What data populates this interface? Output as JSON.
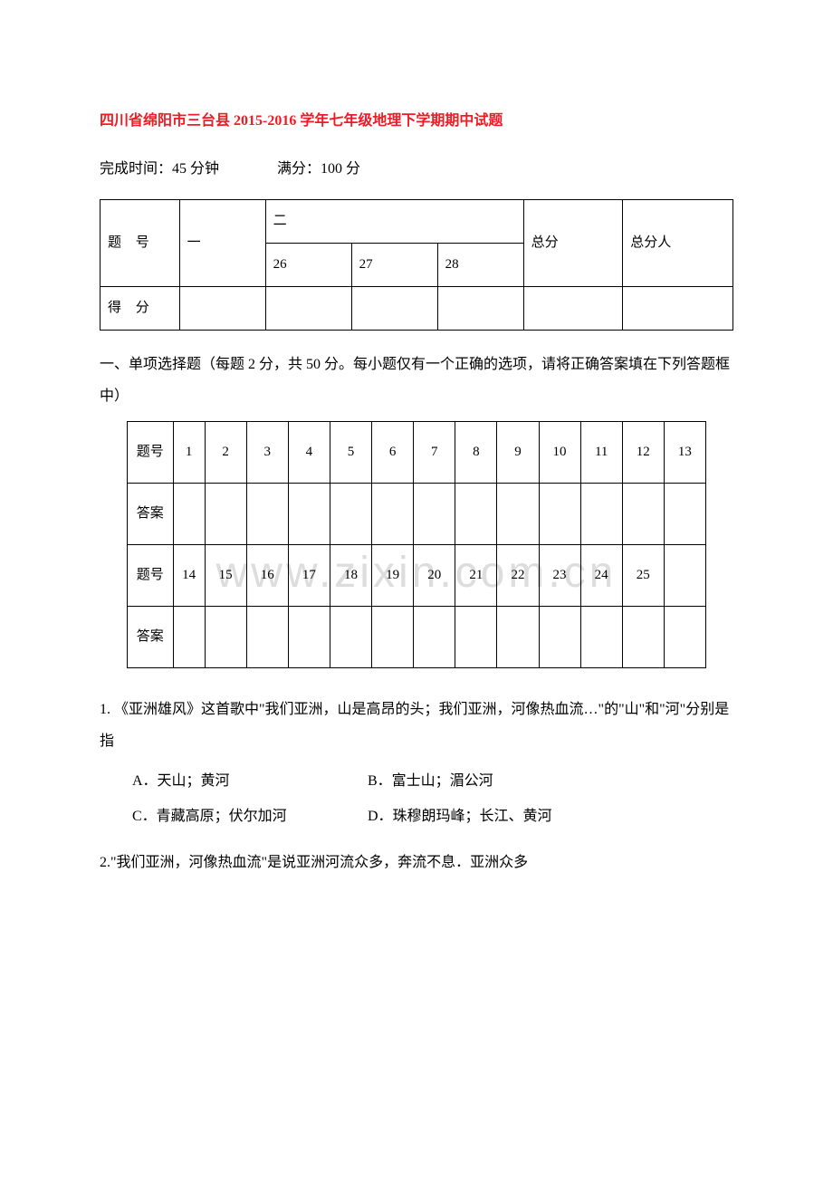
{
  "watermark_text": "www.zixin.com.cn",
  "title": "四川省绵阳市三台县 2015-2016 学年七年级地理下学期期中试题",
  "subtitle": {
    "time_label": "完成时间：45 分钟",
    "score_label": "满分：100 分"
  },
  "score_table": {
    "row_labels": [
      "题 号",
      "得 分"
    ],
    "col_one": "一",
    "col_two": "二",
    "sub_cols": [
      "26",
      "27",
      "28"
    ],
    "total_col": "总分",
    "person_col": "总分人",
    "colors": {
      "border": "#000000",
      "background": "#ffffff",
      "text": "#000000"
    }
  },
  "section1_heading": "一、单项选择题（每题 2 分，共 50 分。每小题仅有一个正确的选项，请将正确答案填在下列答题框中）",
  "answer_table": {
    "row_label_q": "题号",
    "row_label_a": "答案",
    "row1_numbers": [
      "1",
      "2",
      "3",
      "4",
      "5",
      "6",
      "7",
      "8",
      "9",
      "10",
      "11",
      "12",
      "13"
    ],
    "row2_numbers": [
      "14",
      "15",
      "16",
      "17",
      "18",
      "19",
      "20",
      "21",
      "22",
      "23",
      "24",
      "25",
      ""
    ],
    "colors": {
      "border": "#000000",
      "background": "#ffffff",
      "text": "#000000"
    }
  },
  "q1": {
    "text": "1. 《亚洲雄风》这首歌中\"我们亚洲，山是高昂的头；我们亚洲，河像热血流…\"的\"山\"和\"河\"分别是指",
    "optA": "A．天山；黄河",
    "optB": "B．富士山；湄公河",
    "optC": "C．青藏高原；伏尔加河",
    "optD": "D．珠穆朗玛峰；长江、黄河"
  },
  "q2": {
    "text": "2.\"我们亚洲，河像热血流\"是说亚洲河流众多，奔流不息．亚洲众多"
  },
  "styles": {
    "title_color": "#ed1c24",
    "body_color": "#000000",
    "watermark_color": "#dddddd",
    "background_color": "#ffffff",
    "body_fontsize": 16,
    "title_fontsize": 16,
    "watermark_fontsize": 48
  }
}
